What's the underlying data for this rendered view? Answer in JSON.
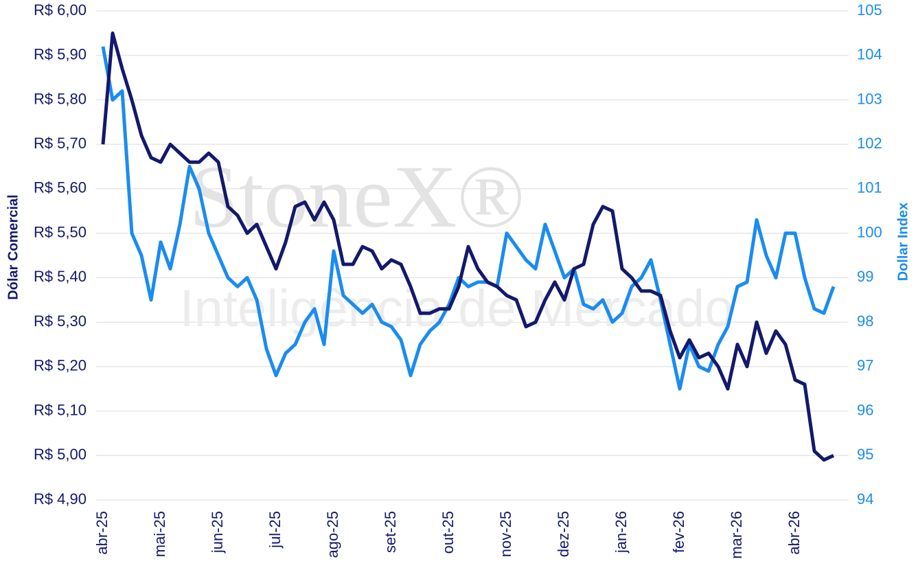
{
  "chart_data": {
    "type": "line",
    "watermark": "StoneX®",
    "watermark_subtitle": "Inteligência de Mercado",
    "ylabel": "Dólar Comercial",
    "y2label": "Dollar Index",
    "categories": [
      "abr-25",
      null,
      null,
      null,
      null,
      null,
      "mai-25",
      null,
      null,
      null,
      null,
      null,
      "jun-25",
      null,
      null,
      null,
      null,
      null,
      "jul-25",
      null,
      null,
      null,
      null,
      null,
      "ago-25",
      null,
      null,
      null,
      null,
      null,
      "set-25",
      null,
      null,
      null,
      null,
      null,
      "out-25",
      null,
      null,
      null,
      null,
      null,
      "nov-25",
      null,
      null,
      null,
      null,
      null,
      "dez-25",
      null,
      null,
      null,
      null,
      null,
      "jan-26",
      null,
      null,
      null,
      null,
      null,
      "fev-26",
      null,
      null,
      null,
      null,
      null,
      "mar-26",
      null,
      null,
      null,
      null,
      null,
      "abr-26",
      null,
      null,
      null,
      null
    ],
    "series": [
      {
        "name": "Dólar Comercial",
        "color": "#13196b",
        "axis": "y",
        "values": [
          5.7,
          5.95,
          5.87,
          5.8,
          5.72,
          5.67,
          5.66,
          5.7,
          5.68,
          5.66,
          5.66,
          5.68,
          5.66,
          5.56,
          5.54,
          5.5,
          5.52,
          5.47,
          5.42,
          5.48,
          5.56,
          5.57,
          5.53,
          5.57,
          5.53,
          5.43,
          5.43,
          5.47,
          5.46,
          5.42,
          5.44,
          5.43,
          5.38,
          5.32,
          5.32,
          5.33,
          5.33,
          5.38,
          5.47,
          5.42,
          5.39,
          5.38,
          5.36,
          5.35,
          5.29,
          5.3,
          5.35,
          5.39,
          5.35,
          5.42,
          5.43,
          5.52,
          5.56,
          5.55,
          5.42,
          5.4,
          5.37,
          5.37,
          5.36,
          5.28,
          5.22,
          5.26,
          5.22,
          5.23,
          5.2,
          5.15,
          5.25,
          5.2,
          5.3,
          5.23,
          5.28,
          5.25,
          5.17,
          5.16,
          5.01,
          4.99,
          5.0
        ]
      },
      {
        "name": "Dollar Index",
        "color": "#1a8cf0",
        "axis": "y2",
        "values": [
          104.2,
          103.0,
          103.2,
          100.0,
          99.5,
          98.5,
          99.8,
          99.2,
          100.2,
          101.5,
          101.0,
          100.0,
          99.5,
          99.0,
          98.8,
          99.0,
          98.5,
          97.4,
          96.8,
          97.3,
          97.5,
          98.0,
          98.3,
          97.5,
          99.6,
          98.6,
          98.4,
          98.2,
          98.4,
          98.0,
          97.9,
          97.6,
          96.8,
          97.5,
          97.8,
          98.0,
          98.4,
          99.0,
          98.8,
          98.9,
          98.9,
          98.8,
          100.0,
          99.7,
          99.4,
          99.2,
          100.2,
          99.6,
          99.0,
          99.2,
          98.4,
          98.3,
          98.5,
          98.0,
          98.2,
          98.8,
          99.0,
          99.4,
          98.5,
          97.5,
          96.5,
          97.5,
          97.0,
          96.9,
          97.5,
          97.9,
          98.8,
          98.9,
          100.3,
          99.5,
          99.0,
          100.0,
          100.0,
          99.0,
          98.3,
          98.2,
          98.8
        ]
      }
    ],
    "ylim": [
      4.9,
      6.0
    ],
    "yticks": [
      {
        "value": 4.9,
        "label": "R$ 4,90"
      },
      {
        "value": 5.0,
        "label": "R$ 5,00"
      },
      {
        "value": 5.1,
        "label": "R$ 5,10"
      },
      {
        "value": 5.2,
        "label": "R$ 5,20"
      },
      {
        "value": 5.3,
        "label": "R$ 5,30"
      },
      {
        "value": 5.4,
        "label": "R$ 5,40"
      },
      {
        "value": 5.5,
        "label": "R$ 5,50"
      },
      {
        "value": 5.6,
        "label": "R$ 5,60"
      },
      {
        "value": 5.7,
        "label": "R$ 5,70"
      },
      {
        "value": 5.8,
        "label": "R$ 5,80"
      },
      {
        "value": 5.9,
        "label": "R$ 5,90"
      },
      {
        "value": 6.0,
        "label": "R$ 6,00"
      }
    ],
    "y2lim": [
      94,
      105
    ],
    "y2ticks": [
      94,
      95,
      96,
      97,
      98,
      99,
      100,
      101,
      102,
      103,
      104,
      105
    ],
    "grid": true
  }
}
